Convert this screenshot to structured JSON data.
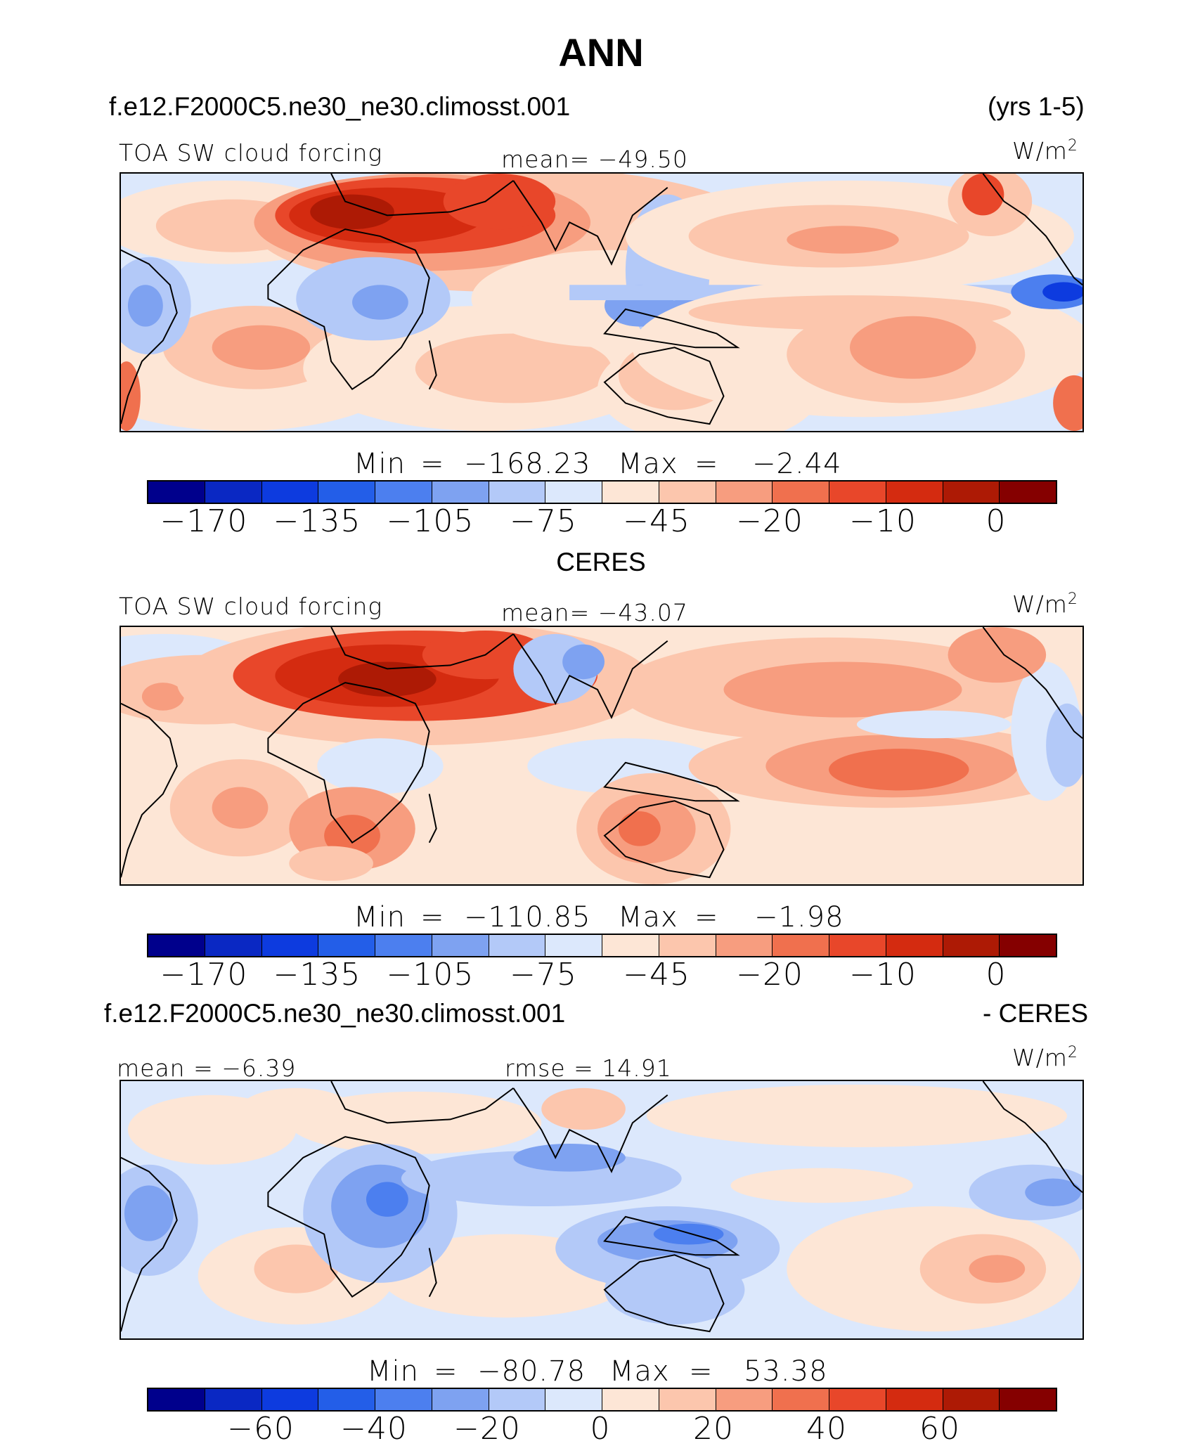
{
  "title": "ANN",
  "case_name": "f.e12.F2000C5.ne30_ne30.climosst.001",
  "years": "(yrs 1-5)",
  "obs_name": "CERES",
  "diff_case_name": "f.e12.F2000C5.ne30_ne30.climosst.001",
  "diff_suffix": "- CERES",
  "units": "W/m",
  "units_exp": "2",
  "palette": [
    "#00008c",
    "#0a28c3",
    "#0d3bdf",
    "#235ee8",
    "#4c7fef",
    "#7ea2f1",
    "#b3c9f8",
    "#dce8fc",
    "#fde6d6",
    "#fcc6ad",
    "#f79d7f",
    "#f0704e",
    "#e8472a",
    "#d42b10",
    "#ad1a05",
    "#850000"
  ],
  "panels": [
    {
      "label": "TOA SW cloud forcing",
      "mean_text": "mean= −49.50",
      "min_label": "Min",
      "min_value": "−168.23",
      "max_label": "Max",
      "max_value": "−2.44",
      "ticks": [
        "−170",
        "−135",
        "−105",
        "−75",
        "−45",
        "−20",
        "−10",
        "0"
      ]
    },
    {
      "label": "TOA SW cloud forcing",
      "mean_text": "mean= −43.07",
      "min_label": "Min",
      "min_value": "−110.85",
      "max_label": "Max",
      "max_value": "−1.98",
      "ticks": [
        "−170",
        "−135",
        "−105",
        "−75",
        "−45",
        "−20",
        "−10",
        "0"
      ]
    },
    {
      "mean_text": "mean =  −6.39",
      "rmse_text": "rmse =  14.91",
      "min_label": "Min",
      "min_value": "−80.78",
      "max_label": "Max",
      "max_value": "53.38",
      "ticks": [
        "−60",
        "−40",
        "−20",
        "0",
        "20",
        "40",
        "60"
      ]
    }
  ]
}
